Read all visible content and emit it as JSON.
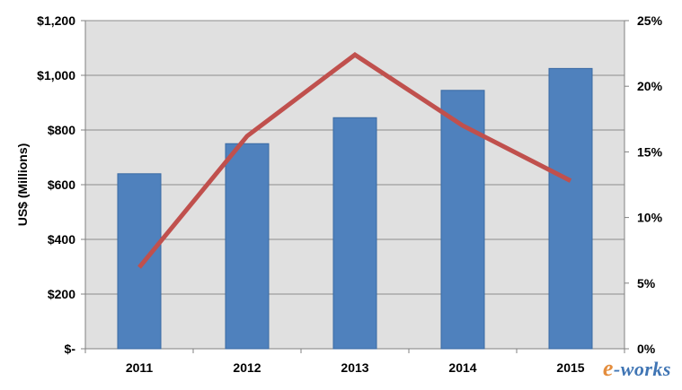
{
  "chart_data": {
    "type": "bar",
    "categories": [
      "2011",
      "2012",
      "2013",
      "2014",
      "2015"
    ],
    "series": [
      {
        "type": "bar",
        "axis": "left",
        "values": [
          640,
          750,
          845,
          945,
          1025
        ],
        "color": "#4f81bd"
      },
      {
        "type": "line",
        "axis": "right",
        "values": [
          6.2,
          16.2,
          22.4,
          17.0,
          12.8
        ],
        "color": "#c0504d"
      }
    ],
    "ylabel": "US$ (Millions)",
    "ylim": [
      0,
      1200
    ],
    "yticks": [
      "$-",
      "$200",
      "$400",
      "$600",
      "$800",
      "$1,000",
      "$1,200"
    ],
    "y2lim": [
      0,
      25
    ],
    "y2ticks": [
      "0%",
      "5%",
      "10%",
      "15%",
      "20%",
      "25%"
    ],
    "grid": true,
    "plot_background": "#e0e0e0"
  },
  "watermark": {
    "prefix": "e",
    "text": "-works"
  }
}
